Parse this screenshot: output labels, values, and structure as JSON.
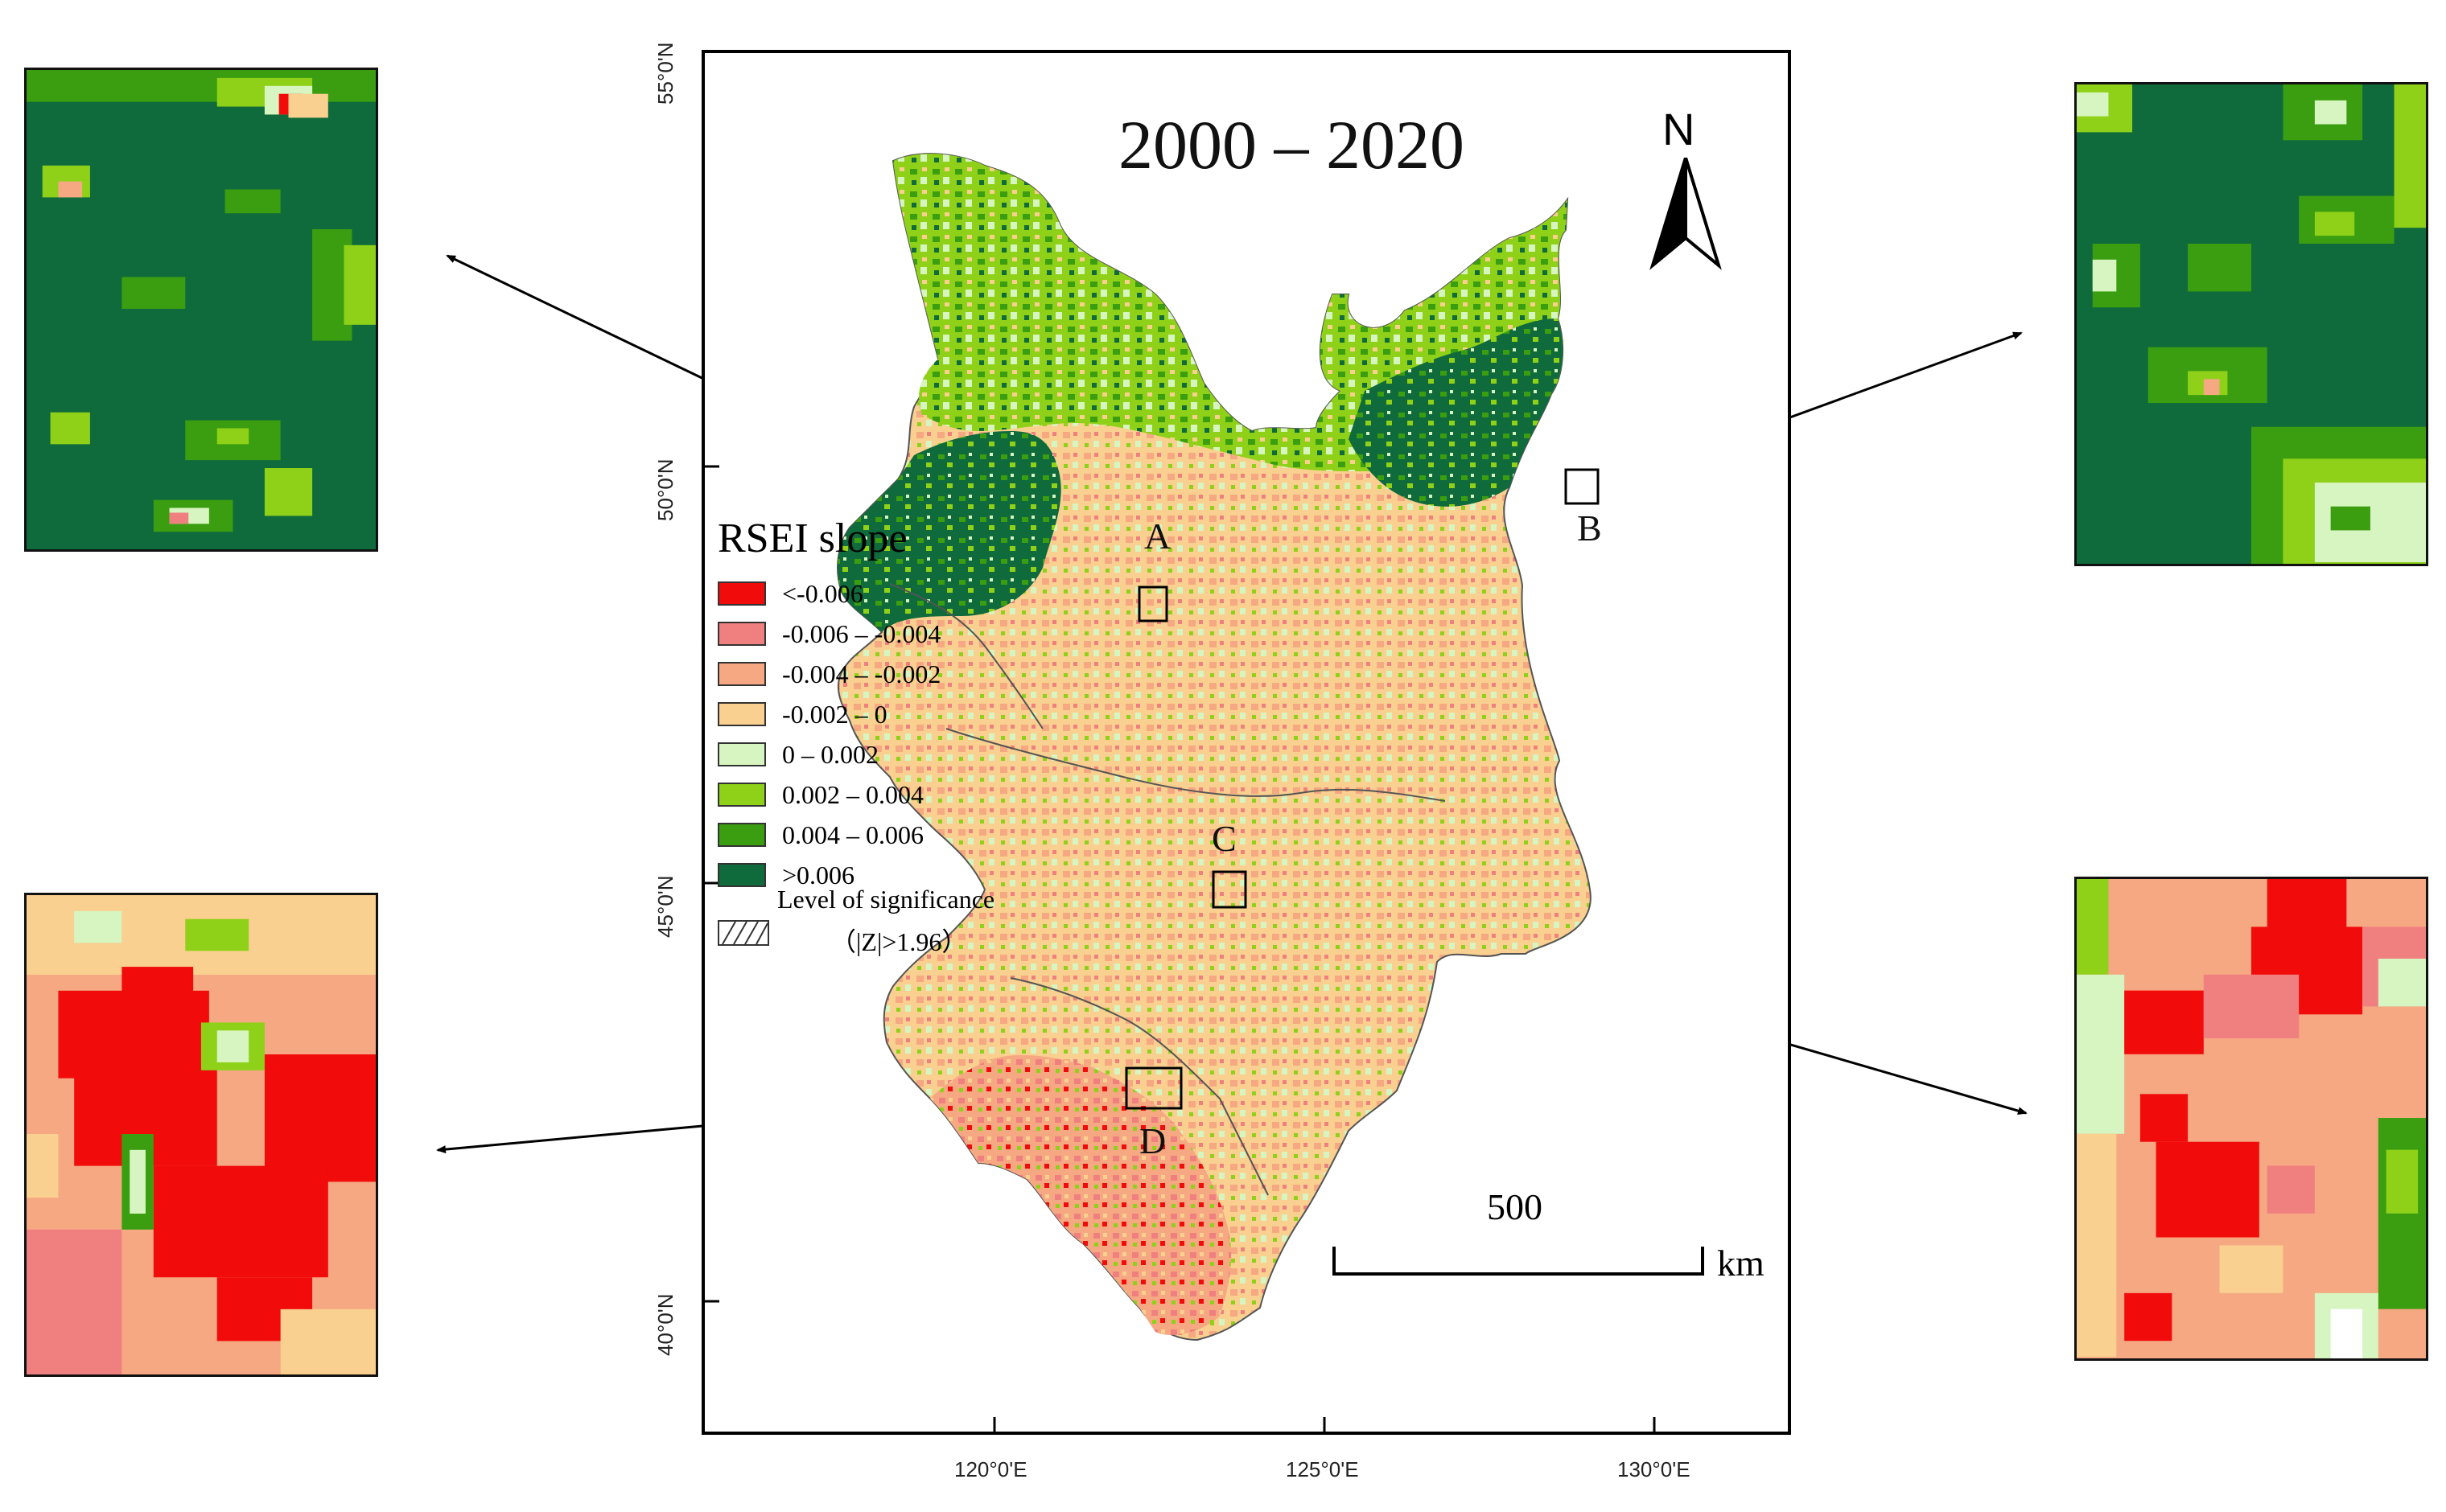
{
  "map": {
    "title": "2000 – 2020",
    "north_label": "N",
    "scale_bar_value": "500",
    "scale_bar_unit": "km",
    "latitude_labels": [
      "55°0'N",
      "50°0'N",
      "45°0'N",
      "40°0'N"
    ],
    "longitude_labels": [
      "120°0'E",
      "125°0'E",
      "130°0'E"
    ],
    "sites": [
      "A",
      "B",
      "C",
      "D"
    ]
  },
  "legend": {
    "title": "RSEI slope",
    "items": [
      {
        "label": "<-0.006",
        "color": "#f20b0b"
      },
      {
        "label": "-0.006 – -0.004",
        "color": "#f08080"
      },
      {
        "label": "-0.004 – -0.002",
        "color": "#f5a882"
      },
      {
        "label": "-0.002 – 0",
        "color": "#f9d08f"
      },
      {
        "label": "0 – 0.002",
        "color": "#d6f5c0"
      },
      {
        "label": "0.002 – 0.004",
        "color": "#8fd118"
      },
      {
        "label": "0.004 – 0.006",
        "color": "#3b9e10"
      },
      {
        "label": ">0.006",
        "color": "#0f6b3c"
      }
    ],
    "significance_label": "Level of significance",
    "significance_criterion": "（|Z|>1.96）"
  },
  "insets": [
    {
      "site": "A",
      "dominant_class": ">0.006"
    },
    {
      "site": "B",
      "dominant_class": ">0.006"
    },
    {
      "site": "C",
      "dominant_class": "-0.004 – -0.002"
    },
    {
      "site": "D",
      "dominant_class": "<-0.006"
    }
  ]
}
